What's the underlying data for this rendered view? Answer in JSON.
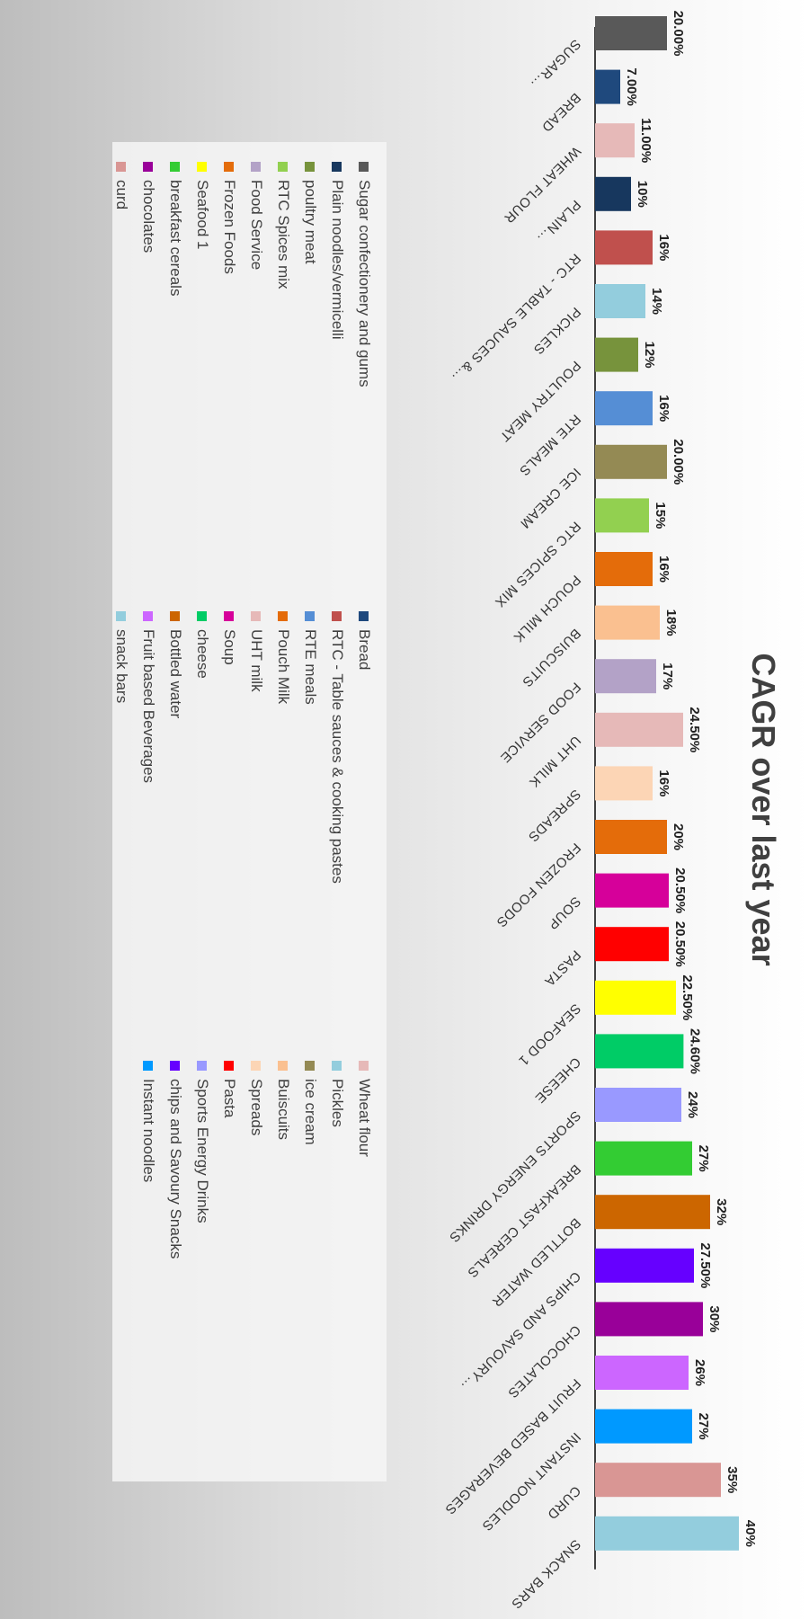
{
  "chart_data": {
    "type": "bar",
    "title": "CAGR over last year",
    "xlabel": "",
    "ylabel": "",
    "ylim": [
      0,
      40
    ],
    "grid": false,
    "legend_position": "bottom",
    "categories": [
      "SUGAR…",
      "BREAD",
      "WHEAT FLOUR",
      "PLAIN…",
      "RTC - TABLE SAUCES &…",
      "PICKLES",
      "POULTRY MEAT",
      "RTE MEALS",
      "ICE CREAM",
      "RTC SPICES MIX",
      "POUCH MILK",
      "BUISCUITS",
      "FOOD SERVICE",
      "UHT MILK",
      "SPREADS",
      "FROZEN FOODS",
      "SOUP",
      "PASTA",
      "SEAFOOD 1",
      "CHEESE",
      "SPORTS ENERGY DRINKS",
      "BREAKFAST CEREALS",
      "BOTTLED WATER",
      "CHIPS AND SAVOURY…",
      "CHOCOLATES",
      "FRUIT BASED BEVERAGES",
      "INSTANT NOODLES",
      "CURD",
      "SNACK BARS"
    ],
    "values": [
      20,
      7,
      11,
      10,
      16,
      14,
      12,
      16,
      20,
      15,
      16,
      18,
      17,
      24.5,
      16,
      20,
      20.5,
      20.5,
      22.5,
      24.6,
      24,
      27,
      32,
      27.5,
      30,
      26,
      27,
      35,
      40
    ],
    "value_labels": [
      "20.00%",
      "7.00%",
      "11.00%",
      "10%",
      "16%",
      "14%",
      "12%",
      "16%",
      "20.00%",
      "15%",
      "16%",
      "18%",
      "17%",
      "24.50%",
      "16%",
      "20%",
      "20.50%",
      "20.50%",
      "22.50%",
      "24.60%",
      "24%",
      "27%",
      "32%",
      "27.50%",
      "30%",
      "26%",
      "27%",
      "35%",
      "40%"
    ],
    "colors": [
      "#595959",
      "#1f497d",
      "#e6b9b8",
      "#17375e",
      "#c0504d",
      "#93cddd",
      "#77933c",
      "#558ed5",
      "#948a54",
      "#92d050",
      "#e46c0a",
      "#fac090",
      "#b3a2c7",
      "#e6b9b8",
      "#fcd5b5",
      "#e46c0a",
      "#d6009a",
      "#ff0000",
      "#ffff00",
      "#00cc66",
      "#9999ff",
      "#33cc33",
      "#cc6600",
      "#6600ff",
      "#990099",
      "#cc66ff",
      "#0099ff",
      "#d99694",
      "#93cddd"
    ],
    "legend": [
      {
        "name": "Sugar confectionery and gums",
        "color": "#595959"
      },
      {
        "name": "Plain noodles/vermicelli",
        "color": "#17375e"
      },
      {
        "name": "poultry meat",
        "color": "#77933c"
      },
      {
        "name": "RTC Spices mix",
        "color": "#92d050"
      },
      {
        "name": "Food Service",
        "color": "#b3a2c7"
      },
      {
        "name": "Frozen Foods",
        "color": "#e46c0a"
      },
      {
        "name": "Seafood 1",
        "color": "#ffff00"
      },
      {
        "name": "breakfast cereals",
        "color": "#33cc33"
      },
      {
        "name": "chocolates",
        "color": "#990099"
      },
      {
        "name": "curd",
        "color": "#d99694"
      },
      {
        "name": "Bread",
        "color": "#1f497d"
      },
      {
        "name": "RTC - Table sauces & cooking pastes",
        "color": "#c0504d"
      },
      {
        "name": "RTE meals",
        "color": "#558ed5"
      },
      {
        "name": "Pouch Milk",
        "color": "#e46c0a"
      },
      {
        "name": "UHT milk",
        "color": "#e6b9b8"
      },
      {
        "name": "Soup",
        "color": "#d6009a"
      },
      {
        "name": "cheese",
        "color": "#00cc66"
      },
      {
        "name": "Bottled water",
        "color": "#cc6600"
      },
      {
        "name": "Fruit based Beverages",
        "color": "#cc66ff"
      },
      {
        "name": "snack bars",
        "color": "#93cddd"
      },
      {
        "name": "Wheat flour",
        "color": "#e6b9b8"
      },
      {
        "name": "Pickles",
        "color": "#93cddd"
      },
      {
        "name": "ice cream",
        "color": "#948a54"
      },
      {
        "name": "Buiscuits",
        "color": "#fac090"
      },
      {
        "name": "Spreads",
        "color": "#fcd5b5"
      },
      {
        "name": "Pasta",
        "color": "#ff0000"
      },
      {
        "name": "Sports Energy Drinks",
        "color": "#9999ff"
      },
      {
        "name": "chips and Savoury Snacks",
        "color": "#6600ff"
      },
      {
        "name": "Instant noodles",
        "color": "#0099ff"
      }
    ]
  }
}
